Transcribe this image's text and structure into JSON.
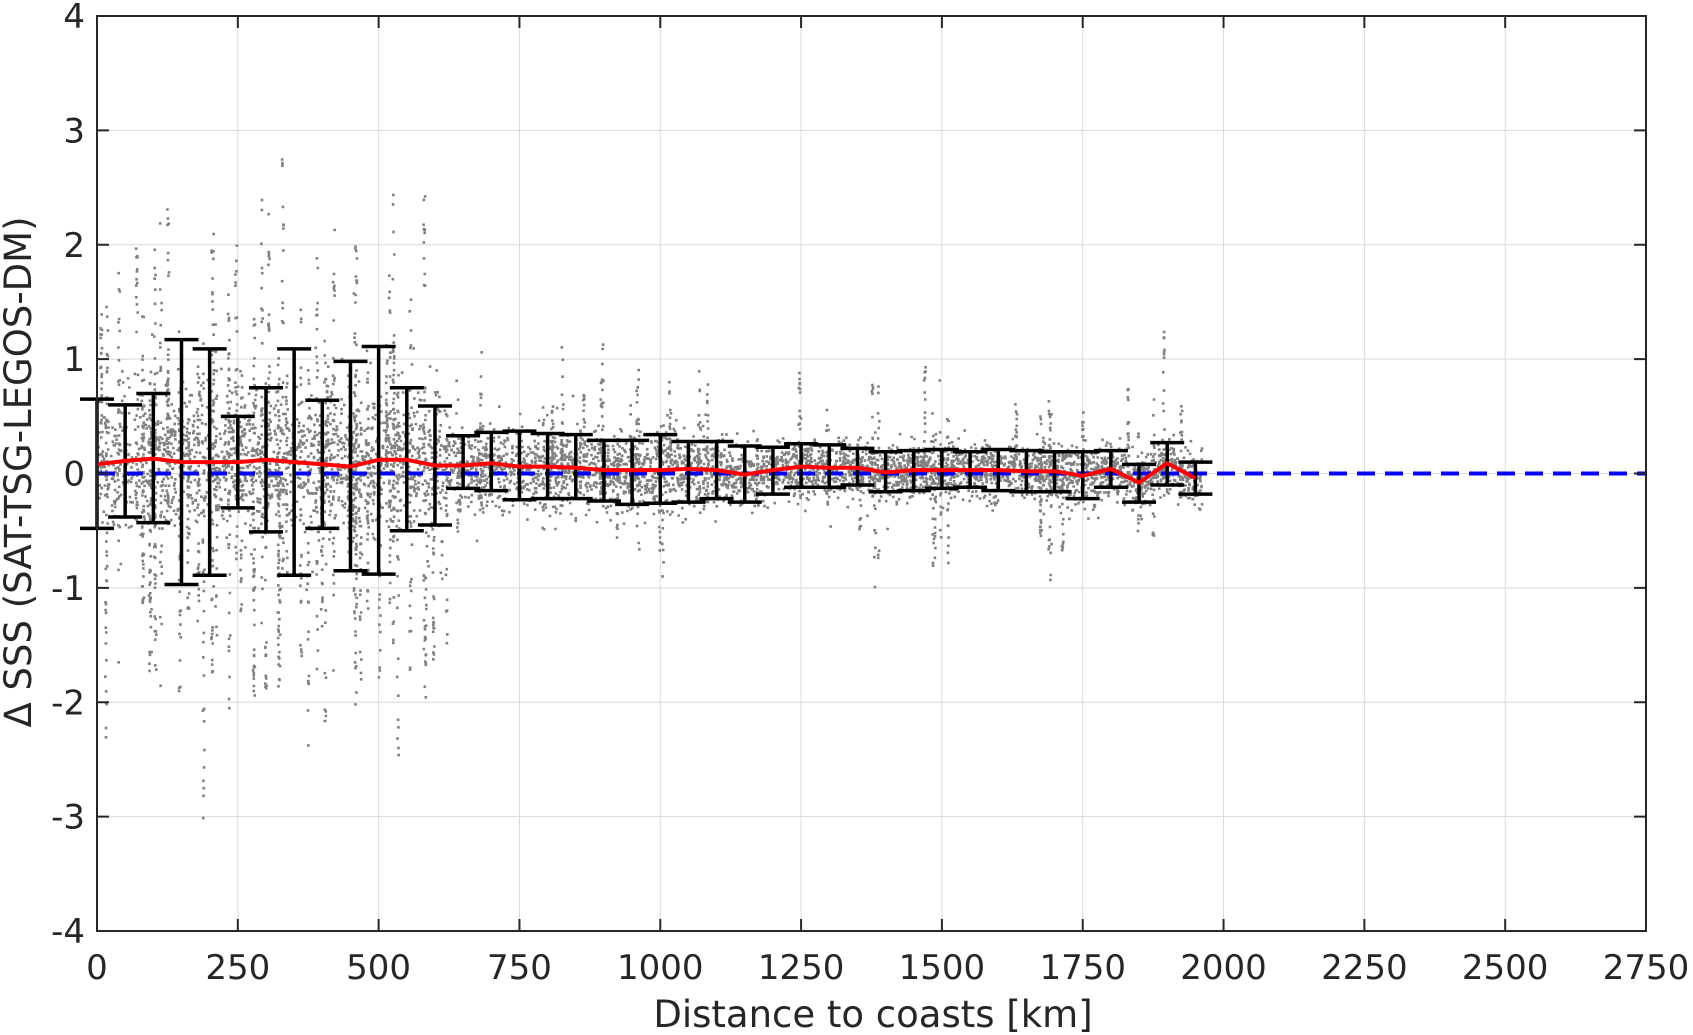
{
  "chart_data": {
    "type": "scatter",
    "xlabel": "Distance to coasts [km]",
    "ylabel": "Δ SSS (SAT-TSG-LEGOS-DM)",
    "xlim": [
      0,
      2750
    ],
    "ylim": [
      -4,
      4
    ],
    "x_ticks": [
      0,
      250,
      500,
      750,
      1000,
      1250,
      1500,
      1750,
      2000,
      2250,
      2500,
      2750
    ],
    "y_ticks": [
      -4,
      -3,
      -2,
      -1,
      0,
      1,
      2,
      3,
      4
    ],
    "x_tick_labels": [
      "0",
      "250",
      "500",
      "750",
      "1000",
      "1250",
      "1500",
      "1750",
      "2000",
      "2250",
      "2500",
      "2750"
    ],
    "y_tick_labels": [
      "-4",
      "-3",
      "-2",
      "-1",
      "0",
      "1",
      "2",
      "3",
      "4"
    ],
    "grid": true,
    "colors": {
      "scatter": "#808080",
      "mean_line": "#ff0000",
      "zero_line": "#0000ff",
      "error_bars": "#000000",
      "grid": "#d9d9d9",
      "axes": "#262626"
    },
    "reference_line": {
      "y": 0,
      "style": "dashed",
      "x_range": [
        0,
        2750
      ]
    },
    "scatter_description": "Dense cloud of gray points; spread about ±1 near coast decreasing to about ±0.3 beyond 1000 km; points extend to 1960 km",
    "binned_stats": {
      "x": [
        0,
        50,
        100,
        150,
        200,
        250,
        300,
        350,
        400,
        450,
        500,
        550,
        600,
        650,
        700,
        750,
        800,
        850,
        900,
        950,
        1000,
        1050,
        1100,
        1150,
        1200,
        1250,
        1300,
        1350,
        1400,
        1450,
        1500,
        1550,
        1600,
        1650,
        1700,
        1750,
        1800,
        1850,
        1900,
        1950
      ],
      "mean": [
        0.08,
        0.11,
        0.13,
        0.1,
        0.1,
        0.1,
        0.12,
        0.1,
        0.08,
        0.06,
        0.12,
        0.12,
        0.07,
        0.07,
        0.09,
        0.06,
        0.06,
        0.05,
        0.03,
        0.03,
        0.03,
        0.04,
        0.03,
        -0.01,
        0.03,
        0.06,
        0.05,
        0.05,
        0.01,
        0.03,
        0.03,
        0.03,
        0.03,
        0.02,
        0.02,
        -0.02,
        0.04,
        -0.08,
        0.09,
        -0.04
      ],
      "lower": [
        -0.48,
        -0.38,
        -0.43,
        -0.97,
        -0.89,
        -0.3,
        -0.51,
        -0.89,
        -0.48,
        -0.85,
        -0.88,
        -0.5,
        -0.45,
        -0.13,
        -0.15,
        -0.23,
        -0.22,
        -0.22,
        -0.24,
        -0.27,
        -0.26,
        -0.25,
        -0.22,
        -0.25,
        -0.18,
        -0.12,
        -0.12,
        -0.1,
        -0.16,
        -0.15,
        -0.13,
        -0.12,
        -0.15,
        -0.16,
        -0.16,
        -0.22,
        -0.12,
        -0.25,
        -0.1,
        -0.18
      ],
      "upper": [
        0.65,
        0.6,
        0.7,
        1.17,
        1.09,
        0.5,
        0.75,
        1.09,
        0.64,
        0.98,
        1.11,
        0.75,
        0.59,
        0.33,
        0.36,
        0.37,
        0.35,
        0.34,
        0.29,
        0.29,
        0.34,
        0.28,
        0.28,
        0.24,
        0.23,
        0.26,
        0.25,
        0.22,
        0.19,
        0.2,
        0.21,
        0.19,
        0.21,
        0.2,
        0.19,
        0.19,
        0.2,
        0.08,
        0.27,
        0.1
      ]
    }
  }
}
